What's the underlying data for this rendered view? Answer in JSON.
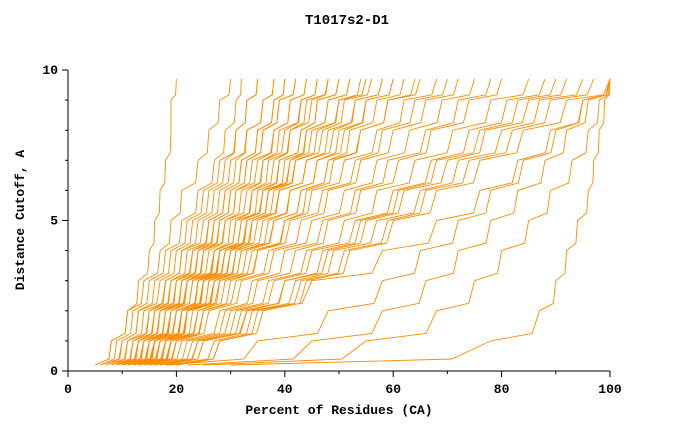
{
  "chart_data": {
    "type": "line",
    "title": "T1017s2-D1",
    "xlabel": "Percent of Residues (CA)",
    "ylabel": "Distance Cutoff, A",
    "xlim": [
      0,
      100
    ],
    "ylim": [
      0,
      10
    ],
    "x_ticks": [
      0,
      20,
      40,
      60,
      80,
      100
    ],
    "x_minor_ticks": [
      10,
      30,
      50,
      70,
      90
    ],
    "y_ticks": [
      0,
      5,
      10
    ],
    "y_minor_ticks": [
      1,
      2,
      3,
      4,
      6,
      7,
      8,
      9
    ],
    "grid": false,
    "legend": "none",
    "color": "#ff8c00",
    "series_format": "each series lists Percent of Residues (CA) at the shared y_samples distance cutoffs",
    "y_samples": [
      0.2,
      1,
      2,
      3,
      4,
      5,
      6,
      7,
      8,
      9,
      9.7
    ],
    "series": [
      [
        5,
        8,
        11,
        13,
        15,
        16,
        17,
        18,
        19,
        19,
        20
      ],
      [
        5,
        8,
        11,
        14,
        17,
        19,
        21,
        24,
        26,
        28,
        30
      ],
      [
        6,
        9,
        12,
        15,
        18,
        21,
        24,
        27,
        29,
        31,
        32
      ],
      [
        6,
        10,
        13,
        16,
        19,
        22,
        25,
        28,
        31,
        33,
        35
      ],
      [
        7,
        10,
        13,
        17,
        20,
        23,
        26,
        29,
        31,
        33,
        35
      ],
      [
        7,
        11,
        14,
        18,
        21,
        24,
        27,
        30,
        33,
        36,
        38
      ],
      [
        8,
        11,
        15,
        18,
        21,
        25,
        28,
        31,
        33,
        36,
        38
      ],
      [
        8,
        12,
        15,
        19,
        22,
        26,
        29,
        32,
        35,
        38,
        40
      ],
      [
        9,
        12,
        16,
        19,
        23,
        26,
        29,
        32,
        35,
        38,
        40
      ],
      [
        9,
        13,
        16,
        20,
        23,
        27,
        30,
        33,
        36,
        39,
        42
      ],
      [
        10,
        13,
        17,
        20,
        24,
        27,
        30,
        33,
        36,
        39,
        42
      ],
      [
        10,
        14,
        17,
        21,
        24,
        28,
        31,
        34,
        38,
        41,
        44
      ],
      [
        11,
        14,
        18,
        21,
        25,
        28,
        31,
        35,
        38,
        41,
        44
      ],
      [
        11,
        15,
        18,
        22,
        25,
        29,
        32,
        36,
        39,
        43,
        46
      ],
      [
        12,
        15,
        19,
        22,
        26,
        29,
        33,
        36,
        40,
        43,
        46
      ],
      [
        12,
        16,
        19,
        23,
        27,
        30,
        34,
        37,
        41,
        44,
        48
      ],
      [
        13,
        16,
        20,
        24,
        27,
        31,
        34,
        38,
        41,
        45,
        48
      ],
      [
        13,
        17,
        21,
        24,
        28,
        32,
        35,
        39,
        43,
        46,
        50
      ],
      [
        14,
        18,
        21,
        25,
        28,
        32,
        36,
        39,
        43,
        46,
        50
      ],
      [
        14,
        18,
        22,
        25,
        29,
        33,
        37,
        40,
        44,
        48,
        52
      ],
      [
        15,
        19,
        22,
        26,
        30,
        33,
        37,
        41,
        44,
        48,
        52
      ],
      [
        15,
        19,
        23,
        27,
        31,
        34,
        38,
        42,
        46,
        50,
        54
      ],
      [
        8,
        13,
        17,
        22,
        27,
        31,
        36,
        41,
        45,
        50,
        55
      ],
      [
        9,
        14,
        19,
        23,
        28,
        33,
        37,
        42,
        47,
        51,
        56
      ],
      [
        10,
        15,
        20,
        24,
        29,
        34,
        39,
        44,
        48,
        53,
        58
      ],
      [
        11,
        16,
        20,
        25,
        30,
        35,
        39,
        44,
        49,
        53,
        58
      ],
      [
        12,
        17,
        22,
        26,
        31,
        36,
        41,
        46,
        50,
        55,
        60
      ],
      [
        13,
        18,
        22,
        27,
        32,
        37,
        41,
        46,
        51,
        55,
        60
      ],
      [
        14,
        19,
        24,
        28,
        33,
        38,
        43,
        48,
        52,
        57,
        62
      ],
      [
        15,
        20,
        25,
        30,
        35,
        40,
        44,
        49,
        54,
        59,
        64
      ],
      [
        10,
        16,
        21,
        27,
        32,
        38,
        43,
        48,
        54,
        59,
        65
      ],
      [
        11,
        17,
        22,
        28,
        34,
        40,
        45,
        51,
        57,
        62,
        68
      ],
      [
        12,
        18,
        24,
        29,
        35,
        41,
        47,
        53,
        58,
        64,
        70
      ],
      [
        13,
        19,
        25,
        31,
        37,
        43,
        48,
        54,
        60,
        66,
        72
      ],
      [
        14,
        20,
        26,
        32,
        38,
        45,
        51,
        57,
        63,
        69,
        75
      ],
      [
        15,
        21,
        28,
        34,
        40,
        47,
        53,
        59,
        66,
        72,
        78
      ],
      [
        16,
        22,
        29,
        35,
        42,
        48,
        54,
        61,
        67,
        74,
        80
      ],
      [
        16,
        23,
        30,
        37,
        44,
        51,
        57,
        64,
        71,
        78,
        85
      ],
      [
        17,
        24,
        31,
        38,
        45,
        53,
        60,
        67,
        74,
        81,
        88
      ],
      [
        18,
        25,
        32,
        40,
        47,
        54,
        61,
        68,
        76,
        83,
        90
      ],
      [
        18,
        25,
        33,
        40,
        48,
        55,
        62,
        70,
        77,
        85,
        92
      ],
      [
        19,
        27,
        34,
        42,
        49,
        57,
        65,
        72,
        80,
        87,
        95
      ],
      [
        20,
        28,
        35,
        43,
        51,
        59,
        66,
        74,
        82,
        89,
        97
      ],
      [
        20,
        28,
        36,
        44,
        52,
        60,
        68,
        76,
        84,
        92,
        100
      ],
      [
        16,
        24,
        33,
        45,
        58,
        68,
        76,
        83,
        89,
        95,
        100
      ],
      [
        18,
        35,
        48,
        58,
        65,
        72,
        78,
        84,
        90,
        95,
        100
      ],
      [
        22,
        45,
        58,
        66,
        72,
        78,
        83,
        88,
        92,
        96,
        100
      ],
      [
        25,
        55,
        68,
        75,
        80,
        85,
        89,
        93,
        96,
        98,
        100
      ],
      [
        30,
        78,
        87,
        90,
        92,
        94,
        96,
        97,
        98,
        99,
        100
      ]
    ]
  }
}
